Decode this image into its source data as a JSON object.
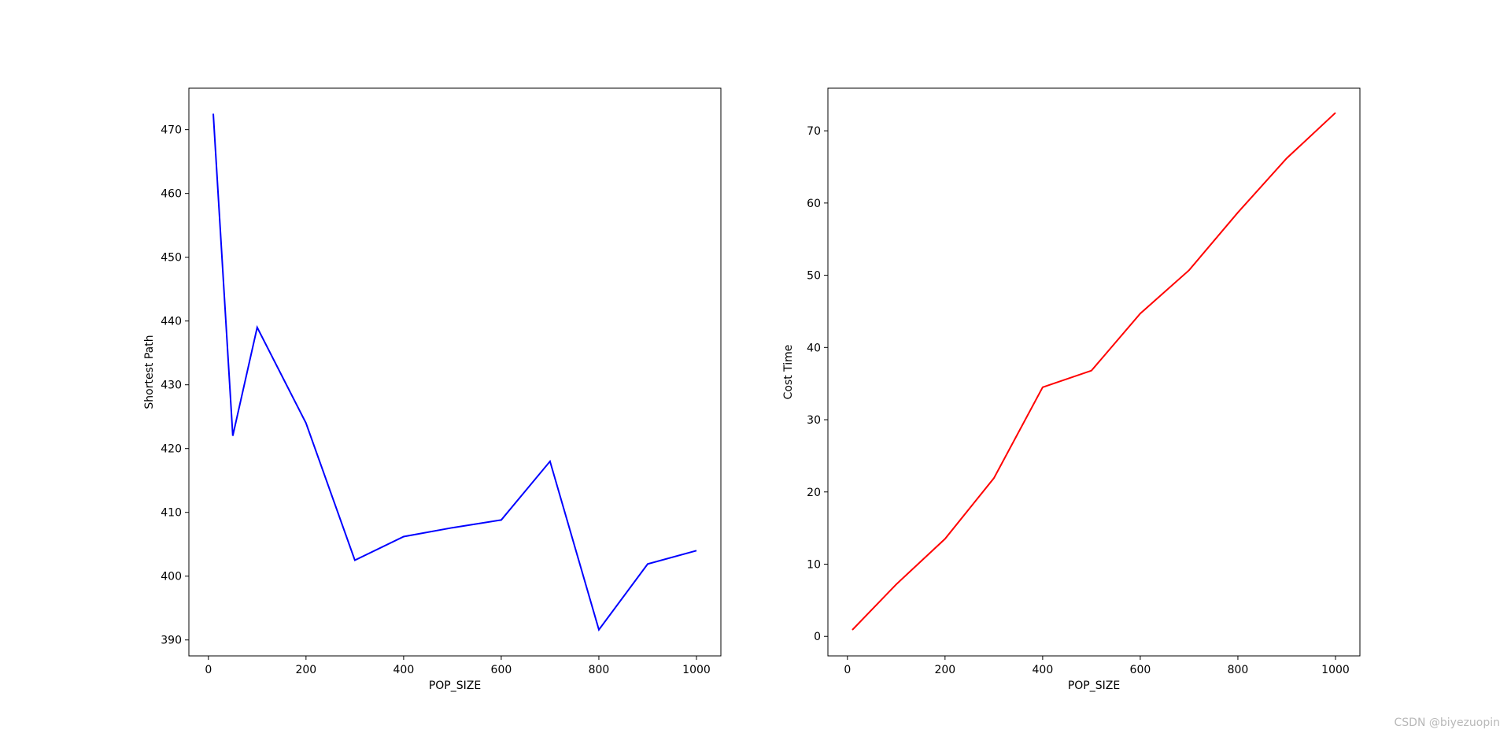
{
  "chart_data": [
    {
      "type": "line",
      "xlabel": "POP_SIZE",
      "ylabel": "Shortest Path",
      "xlim": [
        -40,
        1050
      ],
      "ylim": [
        387.5,
        476.5
      ],
      "xticks": [
        0,
        200,
        400,
        600,
        800,
        1000
      ],
      "yticks": [
        390,
        400,
        410,
        420,
        430,
        440,
        450,
        460,
        470
      ],
      "grid": false,
      "color": "#0000ff",
      "x": [
        10,
        50,
        100,
        200,
        300,
        400,
        500,
        600,
        700,
        800,
        900,
        1000
      ],
      "values": [
        472.5,
        422.0,
        439.0,
        424.0,
        402.5,
        406.2,
        407.6,
        408.8,
        418.0,
        391.6,
        401.9,
        404.0
      ]
    },
    {
      "type": "line",
      "xlabel": "POP_SIZE",
      "ylabel": "Cost Time",
      "xlim": [
        -40,
        1050
      ],
      "ylim": [
        -2.7,
        75.9
      ],
      "xticks": [
        0,
        200,
        400,
        600,
        800,
        1000
      ],
      "yticks": [
        0,
        10,
        20,
        30,
        40,
        50,
        60,
        70
      ],
      "grid": false,
      "color": "#ff0000",
      "x": [
        10,
        50,
        100,
        200,
        300,
        400,
        500,
        600,
        700,
        800,
        900,
        1000
      ],
      "values": [
        0.9,
        3.7,
        7.2,
        13.5,
        21.9,
        34.5,
        36.8,
        44.7,
        50.7,
        58.7,
        66.2,
        72.5
      ]
    }
  ],
  "watermark": "CSDN @biyezuopin"
}
